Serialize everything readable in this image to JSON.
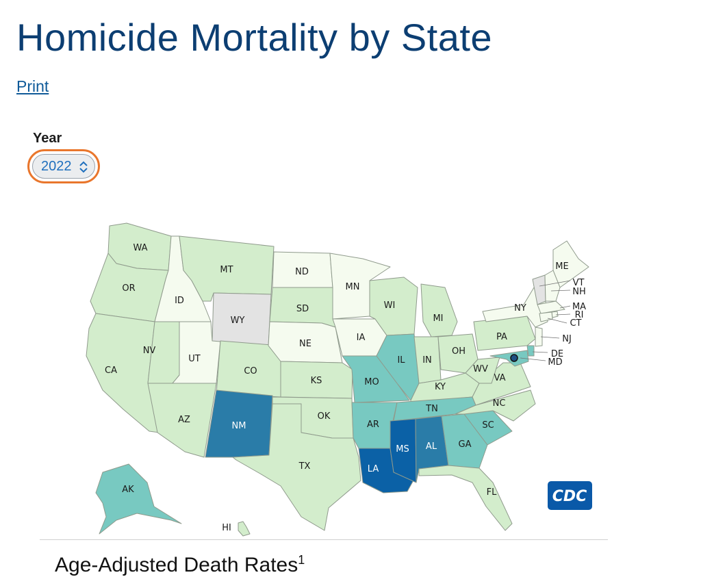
{
  "page": {
    "title": "Homicide Mortality by State",
    "print_label": "Print"
  },
  "filter": {
    "year_label": "Year",
    "year_value": "2022"
  },
  "colors": {
    "no_data": "#e3e3e3",
    "bin_1": "#f5fbef",
    "bin_2": "#d3edcc",
    "bin_3": "#78c9c1",
    "bin_4": "#2a7ca8",
    "bin_5": "#0b61a6",
    "dc_marker": "#1d4f82"
  },
  "states": [
    {
      "abbr": "WA",
      "bin": 2
    },
    {
      "abbr": "OR",
      "bin": 2
    },
    {
      "abbr": "CA",
      "bin": 2
    },
    {
      "abbr": "ID",
      "bin": 1
    },
    {
      "abbr": "NV",
      "bin": 2
    },
    {
      "abbr": "UT",
      "bin": 1
    },
    {
      "abbr": "AZ",
      "bin": 2
    },
    {
      "abbr": "MT",
      "bin": 2
    },
    {
      "abbr": "WY",
      "bin": 0
    },
    {
      "abbr": "CO",
      "bin": 2
    },
    {
      "abbr": "NM",
      "bin": 4
    },
    {
      "abbr": "ND",
      "bin": 1
    },
    {
      "abbr": "SD",
      "bin": 2
    },
    {
      "abbr": "NE",
      "bin": 1
    },
    {
      "abbr": "KS",
      "bin": 2
    },
    {
      "abbr": "OK",
      "bin": 2
    },
    {
      "abbr": "TX",
      "bin": 2
    },
    {
      "abbr": "MN",
      "bin": 1
    },
    {
      "abbr": "IA",
      "bin": 1
    },
    {
      "abbr": "MO",
      "bin": 3
    },
    {
      "abbr": "AR",
      "bin": 3
    },
    {
      "abbr": "LA",
      "bin": 5
    },
    {
      "abbr": "WI",
      "bin": 2
    },
    {
      "abbr": "IL",
      "bin": 3
    },
    {
      "abbr": "MI",
      "bin": 2
    },
    {
      "abbr": "IN",
      "bin": 2
    },
    {
      "abbr": "OH",
      "bin": 2
    },
    {
      "abbr": "KY",
      "bin": 2
    },
    {
      "abbr": "TN",
      "bin": 3
    },
    {
      "abbr": "MS",
      "bin": 5
    },
    {
      "abbr": "AL",
      "bin": 4
    },
    {
      "abbr": "GA",
      "bin": 3
    },
    {
      "abbr": "FL",
      "bin": 2
    },
    {
      "abbr": "SC",
      "bin": 3
    },
    {
      "abbr": "NC",
      "bin": 2
    },
    {
      "abbr": "VA",
      "bin": 2
    },
    {
      "abbr": "WV",
      "bin": 2
    },
    {
      "abbr": "PA",
      "bin": 2
    },
    {
      "abbr": "NY",
      "bin": 1
    },
    {
      "abbr": "ME",
      "bin": 1
    },
    {
      "abbr": "VT",
      "bin": 0
    },
    {
      "abbr": "NH",
      "bin": 1
    },
    {
      "abbr": "MA",
      "bin": 1
    },
    {
      "abbr": "RI",
      "bin": 1
    },
    {
      "abbr": "CT",
      "bin": 1
    },
    {
      "abbr": "NJ",
      "bin": 1
    },
    {
      "abbr": "DE",
      "bin": 3
    },
    {
      "abbr": "MD",
      "bin": 3
    },
    {
      "abbr": "AK",
      "bin": 3
    },
    {
      "abbr": "HI",
      "bin": 2
    }
  ],
  "logo": {
    "text": "CDC"
  },
  "section": {
    "heading": "Age-Adjusted Death Rates",
    "footnote": "1"
  }
}
